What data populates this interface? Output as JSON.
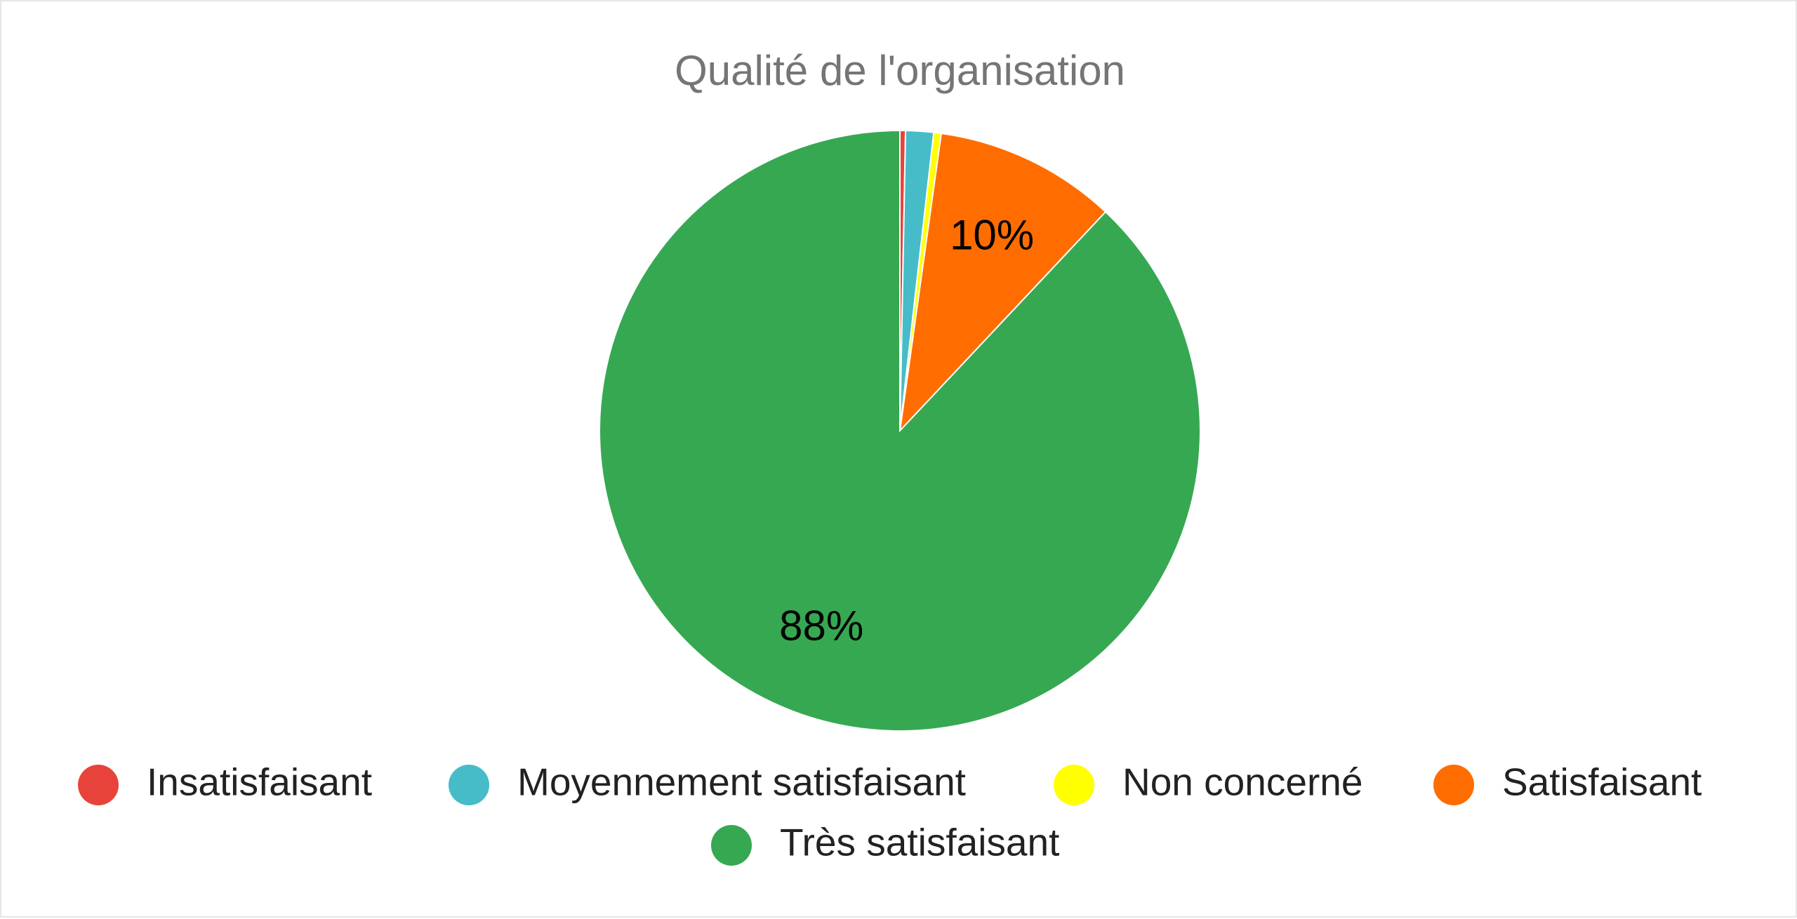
{
  "chart_data": {
    "type": "pie",
    "title": "Qualité de l'organisation",
    "categories": [
      "Insatisfaisant",
      "Moyennement satisfaisant",
      "Non concerné",
      "Satisfaisant",
      "Très satisfaisant"
    ],
    "values": [
      0.3,
      1.5,
      0.4,
      9.8,
      88
    ],
    "value_labels": [
      null,
      null,
      null,
      "10%",
      "88%"
    ],
    "colors": [
      "#e8433a",
      "#46bcc8",
      "#ffff00",
      "#ff6d00",
      "#36a852"
    ],
    "legend": "bottom"
  }
}
